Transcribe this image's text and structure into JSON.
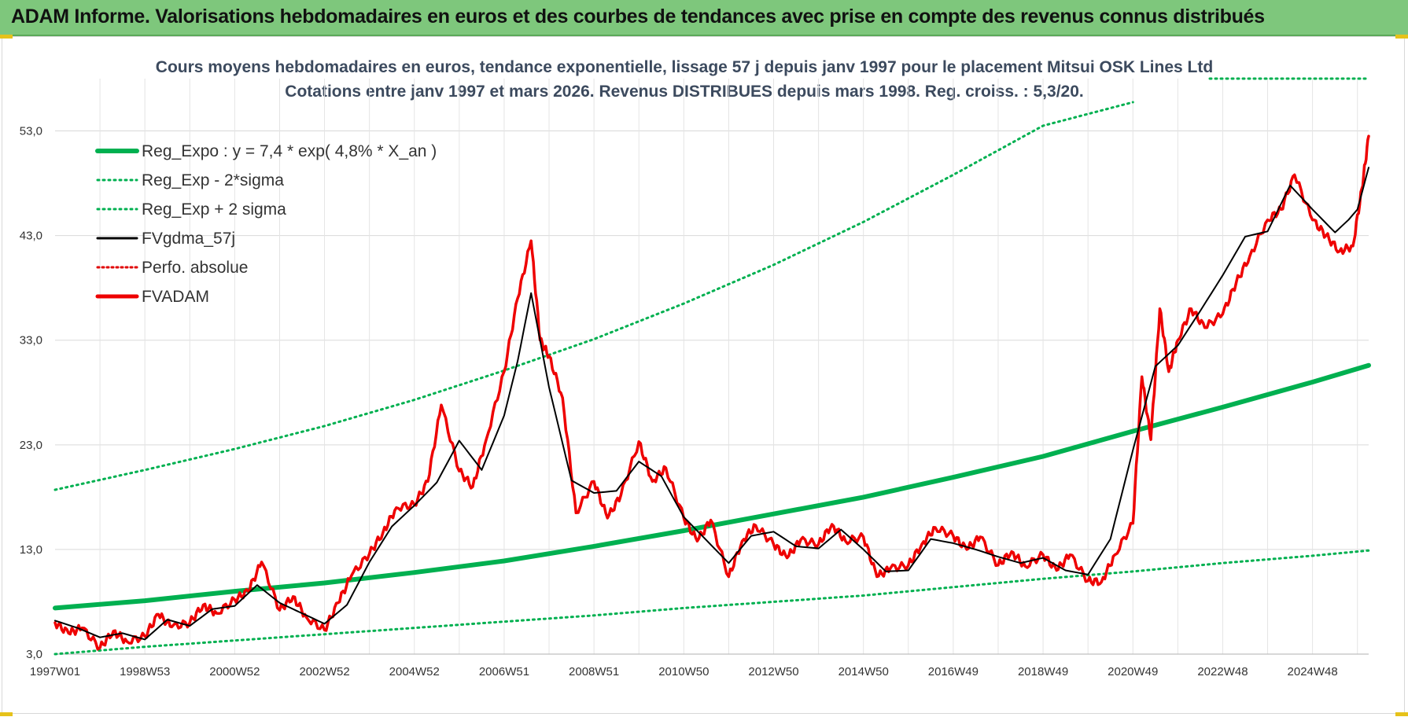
{
  "header": {
    "title": "ADAM Informe. Valorisations hebdomadaires en euros et des courbes de tendances avec prise en compte des revenus connus distribués"
  },
  "chart_data": {
    "type": "line",
    "title": "Cours moyens hebdomadaires en euros, tendance exponentielle, lissage 57 j depuis janv 1997  pour le placement Mitsui OSK Lines Ltd",
    "subtitle": "Cotations entre janv 1997 et mars 2026. Revenus DISTRIBUES depuis mars 1998.  Reg. croiss. : 5,3/20.",
    "xlabel": "",
    "ylabel": "",
    "x_range": [
      1997.0,
      2026.25
    ],
    "ylim": [
      3.0,
      58.0
    ],
    "y_ticks": [
      "3,0",
      "13,0",
      "23,0",
      "33,0",
      "43,0",
      "53,0"
    ],
    "y_tick_values": [
      3,
      13,
      23,
      33,
      43,
      53
    ],
    "x_ticks": [
      "1997W01",
      "1998W53",
      "2000W52",
      "2002W52",
      "2004W52",
      "2006W51",
      "2008W51",
      "2010W50",
      "2012W50",
      "2014W50",
      "2016W49",
      "2018W49",
      "2020W49",
      "2022W48",
      "2024W48"
    ],
    "x_tick_years": [
      1997.0,
      1999.0,
      2001.0,
      2003.0,
      2005.0,
      2007.0,
      2009.0,
      2011.0,
      2013.0,
      2015.0,
      2017.0,
      2019.0,
      2021.0,
      2023.0,
      2025.0
    ],
    "grid": true,
    "legend_position": "top-left",
    "legend": [
      {
        "name": "Reg_Expo : y = 7,4 * exp( 4,8% *  X_an )",
        "color": "#00b050",
        "style": "thick"
      },
      {
        "name": "Reg_Exp - 2*sigma",
        "color": "#00b050",
        "style": "dotted"
      },
      {
        "name": "Reg_Exp + 2 sigma",
        "color": "#00b050",
        "style": "dotted"
      },
      {
        "name": "FVgdma_57j",
        "color": "#000000",
        "style": "solid"
      },
      {
        "name": "Perfo. absolue",
        "color": "#e00000",
        "style": "dotted"
      },
      {
        "name": "FVADAM",
        "color": "#ee0000",
        "style": "thick"
      }
    ],
    "series": [
      {
        "name": "Reg_Expo : y = 7,4 * exp( 4,8% *  X_an )",
        "x": [
          1997,
          1999,
          2001,
          2003,
          2005,
          2007,
          2009,
          2011,
          2013,
          2015,
          2017,
          2019,
          2021,
          2023,
          2025,
          2026.25
        ],
        "values": [
          7.4,
          8.1,
          9.0,
          9.8,
          10.8,
          11.9,
          13.3,
          14.8,
          16.4,
          18.0,
          19.9,
          21.9,
          24.3,
          26.6,
          29.0,
          30.6
        ]
      },
      {
        "name": "Reg_Exp - 2*sigma",
        "x": [
          1997,
          1999,
          2001,
          2003,
          2005,
          2007,
          2009,
          2011,
          2013,
          2015,
          2017,
          2019,
          2021,
          2023,
          2025,
          2026.25
        ],
        "values": [
          3.0,
          3.7,
          4.3,
          4.9,
          5.5,
          6.1,
          6.7,
          7.4,
          8.0,
          8.6,
          9.4,
          10.2,
          10.9,
          11.7,
          12.4,
          12.9
        ]
      },
      {
        "name": "Reg_Exp + 2 sigma",
        "x": [
          1997,
          1999,
          2001,
          2003,
          2005,
          2007,
          2009,
          2011,
          2013,
          2015,
          2017,
          2019,
          2021,
          2023,
          2025,
          2026.25
        ],
        "values": [
          18.7,
          20.6,
          22.6,
          24.8,
          27.3,
          30.1,
          33.1,
          36.5,
          40.2,
          44.3,
          48.8,
          53.5,
          58.0,
          null,
          null,
          null
        ]
      },
      {
        "name": "FVgdma_57j",
        "x": [
          1997.0,
          1997.5,
          1998.0,
          1998.5,
          1999.0,
          1999.5,
          2000.0,
          2000.5,
          2001.0,
          2001.5,
          2002.0,
          2002.5,
          2003.0,
          2003.5,
          2004.0,
          2004.5,
          2005.0,
          2005.5,
          2006.0,
          2006.5,
          2007.0,
          2007.3,
          2007.6,
          2008.0,
          2008.5,
          2009.0,
          2009.5,
          2010.0,
          2010.5,
          2011.0,
          2011.5,
          2012.0,
          2012.5,
          2013.0,
          2013.5,
          2014.0,
          2014.5,
          2015.0,
          2015.5,
          2016.0,
          2016.5,
          2017.0,
          2017.5,
          2018.0,
          2018.5,
          2019.0,
          2019.5,
          2020.0,
          2020.5,
          2021.0,
          2021.5,
          2022.0,
          2022.5,
          2023.0,
          2023.5,
          2024.0,
          2024.5,
          2025.0,
          2025.5,
          2025.8,
          2026.0,
          2026.25
        ],
        "values": [
          6.2,
          5.5,
          4.6,
          5.0,
          4.4,
          6.3,
          5.7,
          7.3,
          7.6,
          9.6,
          7.9,
          6.9,
          5.9,
          7.7,
          11.8,
          15.2,
          17.2,
          19.4,
          23.4,
          20.6,
          25.8,
          31.0,
          37.5,
          28.5,
          19.6,
          18.4,
          18.6,
          21.4,
          20.0,
          16.1,
          13.9,
          11.7,
          14.3,
          14.7,
          13.3,
          13.1,
          14.9,
          13.0,
          10.9,
          11.0,
          14.0,
          13.6,
          13.0,
          12.3,
          11.7,
          12.2,
          11.0,
          10.6,
          14.0,
          22.5,
          30.5,
          32.5,
          35.8,
          39.2,
          42.9,
          43.4,
          47.8,
          45.5,
          43.3,
          44.5,
          45.5,
          49.5
        ]
      },
      {
        "name": "FVADAM",
        "x": [
          1997.0,
          1997.3,
          1997.6,
          1998.0,
          1998.3,
          1998.6,
          1999.0,
          1999.3,
          1999.6,
          2000.0,
          2000.3,
          2000.6,
          2001.0,
          2001.3,
          2001.6,
          2002.0,
          2002.3,
          2002.6,
          2003.0,
          2003.3,
          2003.6,
          2004.0,
          2004.3,
          2004.6,
          2005.0,
          2005.3,
          2005.6,
          2006.0,
          2006.3,
          2006.6,
          2007.0,
          2007.3,
          2007.6,
          2007.8,
          2008.0,
          2008.3,
          2008.6,
          2009.0,
          2009.3,
          2009.6,
          2010.0,
          2010.3,
          2010.6,
          2011.0,
          2011.3,
          2011.6,
          2012.0,
          2012.3,
          2012.6,
          2013.0,
          2013.3,
          2013.6,
          2014.0,
          2014.3,
          2014.6,
          2015.0,
          2015.3,
          2015.6,
          2016.0,
          2016.3,
          2016.6,
          2017.0,
          2017.3,
          2017.6,
          2018.0,
          2018.3,
          2018.6,
          2019.0,
          2019.3,
          2019.6,
          2020.0,
          2020.3,
          2020.6,
          2021.0,
          2021.2,
          2021.4,
          2021.6,
          2021.8,
          2022.0,
          2022.3,
          2022.6,
          2023.0,
          2023.3,
          2023.6,
          2024.0,
          2024.3,
          2024.6,
          2025.0,
          2025.3,
          2025.6,
          2025.9,
          2026.1,
          2026.25
        ],
        "values": [
          6.0,
          5.0,
          5.5,
          3.6,
          5.2,
          4.2,
          4.7,
          6.8,
          5.6,
          6.0,
          7.7,
          6.9,
          8.2,
          9.0,
          11.8,
          7.2,
          8.5,
          6.5,
          5.3,
          7.9,
          10.5,
          12.6,
          14.6,
          17.0,
          17.3,
          19.5,
          26.8,
          20.5,
          19.0,
          23.5,
          30.0,
          37.0,
          42.5,
          33.0,
          31.5,
          27.5,
          16.5,
          19.5,
          16.0,
          18.2,
          23.3,
          19.5,
          20.8,
          16.0,
          13.8,
          15.8,
          10.4,
          13.8,
          15.3,
          13.5,
          12.2,
          13.9,
          13.5,
          15.4,
          13.8,
          14.2,
          10.4,
          11.2,
          11.5,
          13.5,
          15.1,
          14.3,
          13.0,
          14.2,
          11.5,
          12.8,
          11.4,
          12.5,
          11.0,
          12.5,
          10.0,
          9.9,
          12.5,
          15.5,
          29.5,
          23.5,
          36.0,
          30.0,
          33.0,
          36.0,
          34.2,
          35.5,
          38.5,
          41.0,
          44.5,
          45.5,
          48.8,
          44.5,
          43.0,
          41.5,
          42.0,
          47.5,
          52.5
        ]
      }
    ]
  }
}
